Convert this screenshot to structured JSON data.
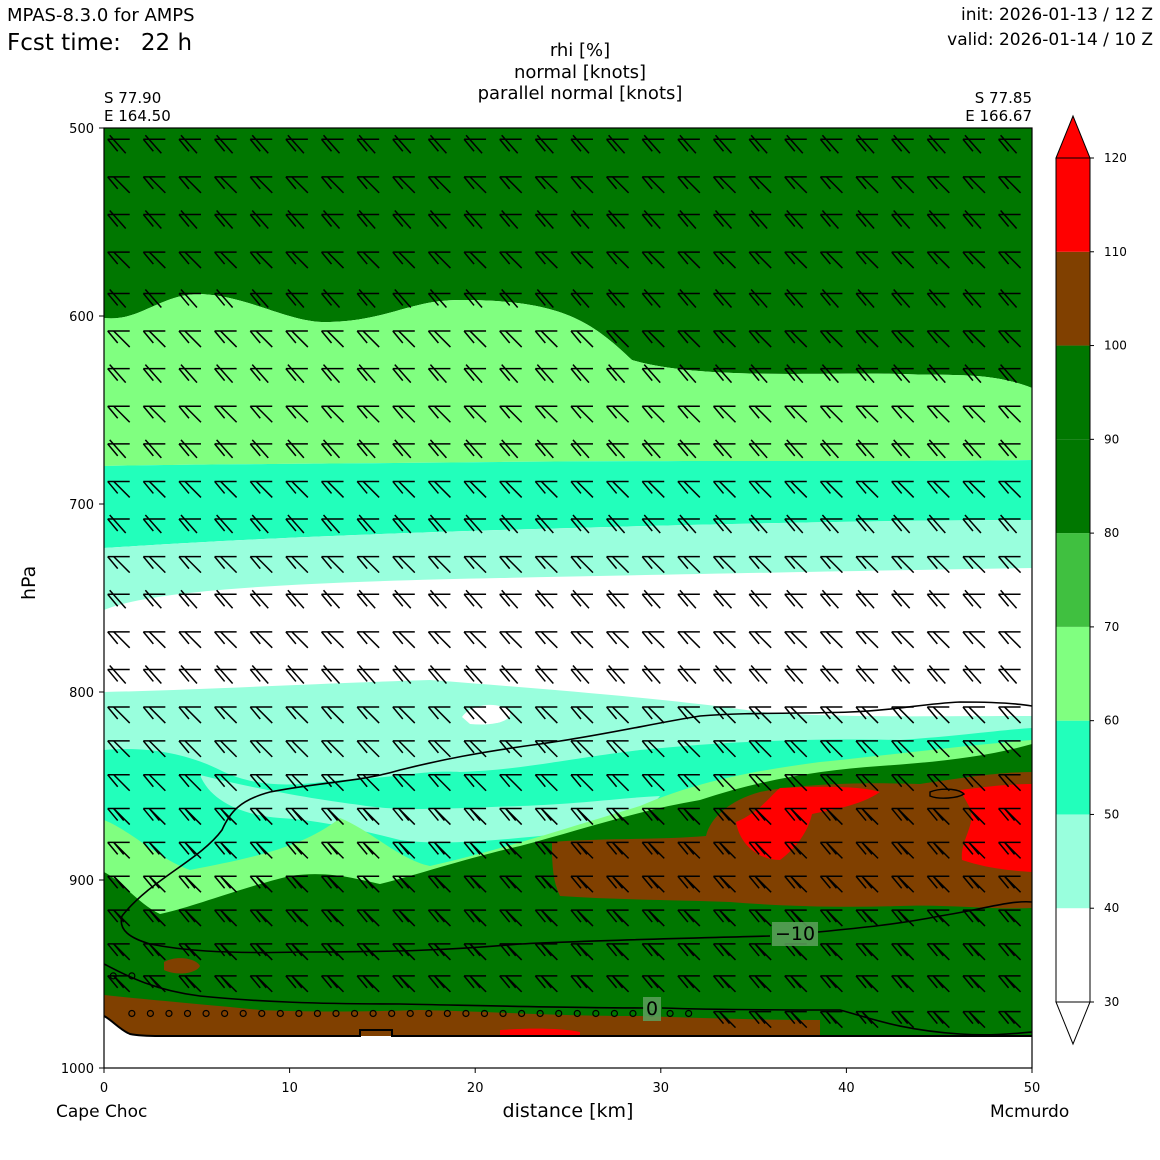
{
  "header": {
    "model": "MPAS-8.3.0 for AMPS",
    "fcst_label": "Fcst time:",
    "fcst_value": "22 h",
    "init": "init: 2026-01-13 / 12 Z",
    "valid": "valid: 2026-01-14 / 10 Z"
  },
  "chart_data": {
    "type": "cross-section",
    "title": [
      "rhi [%]",
      "normal [knots]",
      "parallel normal [knots]"
    ],
    "xlabel": "distance [km]",
    "ylabel": "hPa",
    "xlim": [
      0,
      50
    ],
    "ylim": [
      1000,
      500
    ],
    "y_inverted": true,
    "xticks": [
      0,
      10,
      20,
      30,
      40,
      50
    ],
    "yticks": [
      500,
      600,
      700,
      800,
      900,
      1000
    ],
    "start_point": {
      "name": "Cape Choc",
      "lat": "S 77.90",
      "lon": "E 164.50"
    },
    "end_point": {
      "name": "Mcmurdo",
      "lat": "S 77.85",
      "lon": "E 166.67"
    },
    "colorbar": {
      "label": "rhi [%]",
      "ticks": [
        30,
        40,
        50,
        60,
        70,
        80,
        90,
        100,
        110,
        120
      ],
      "bins": [
        {
          "from": 30,
          "to": 40,
          "color": "#ffffff"
        },
        {
          "from": 40,
          "to": 50,
          "color": "#99ffdd"
        },
        {
          "from": 50,
          "to": 60,
          "color": "#22ffbb"
        },
        {
          "from": 60,
          "to": 70,
          "color": "#80ff80"
        },
        {
          "from": 70,
          "to": 80,
          "color": "#40c040"
        },
        {
          "from": 80,
          "to": 90,
          "color": "#007700"
        },
        {
          "from": 90,
          "to": 100,
          "color": "#007700"
        },
        {
          "from": 100,
          "to": 110,
          "color": "#804000"
        },
        {
          "from": 110,
          "to": 120,
          "color": "#ff0000"
        }
      ],
      "extend": "both"
    },
    "rhi_layers_description": [
      {
        "range_hpa": [
          500,
          600
        ],
        "rhi_band": "80-100"
      },
      {
        "range_hpa": [
          600,
          680
        ],
        "rhi_band": "60-70"
      },
      {
        "range_hpa": [
          680,
          720
        ],
        "rhi_band": "50-60"
      },
      {
        "range_hpa": [
          720,
          750
        ],
        "rhi_band": "40-50"
      },
      {
        "range_hpa": [
          750,
          800
        ],
        "rhi_band": "30-40"
      },
      {
        "range_hpa": [
          800,
          860
        ],
        "rhi_band": "40-60"
      },
      {
        "range_hpa": [
          860,
          980
        ],
        "rhi_band": "80-120"
      }
    ],
    "temperature_contours": [
      {
        "label": "-10",
        "display": "−10",
        "level_c": -10,
        "x_km": 37.5,
        "p_hpa": 927
      },
      {
        "label": "0",
        "display": "0",
        "level_c": 0,
        "x_km": 29.8,
        "p_hpa": 967
      }
    ],
    "terrain_top_hpa": 983,
    "barb_levels_hpa": [
      506,
      526,
      546,
      566,
      588,
      608,
      628,
      648,
      668,
      688,
      708,
      728,
      748,
      768,
      788,
      808,
      826,
      844,
      862,
      880,
      898,
      916,
      934,
      951,
      970
    ],
    "barb_x_km_step": 1.92
  },
  "colors": {
    "dark_green": "#007700",
    "light_green": "#80ff80",
    "aqua": "#22ffbb",
    "pale_aqua": "#99ffdd",
    "brown": "#804000",
    "red": "#ff0000"
  }
}
